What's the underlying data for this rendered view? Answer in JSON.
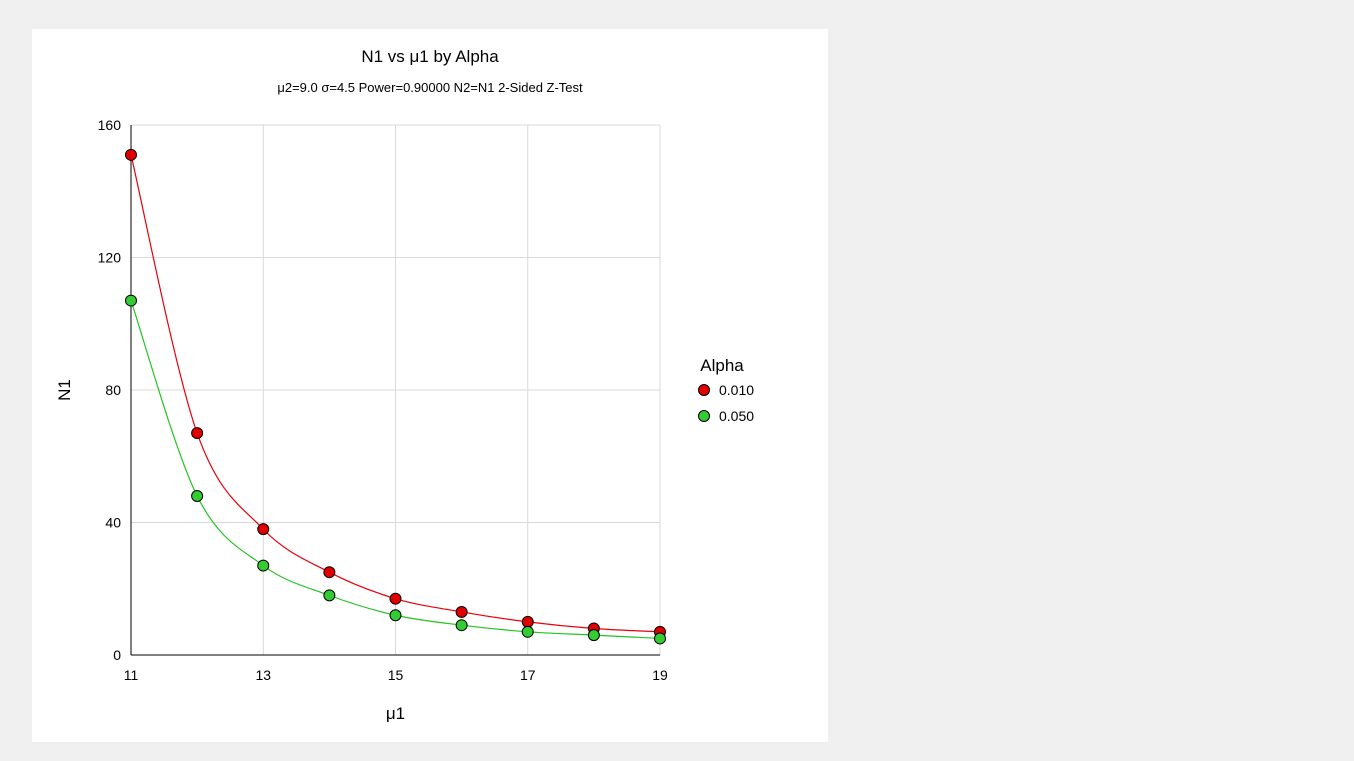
{
  "chart_data": {
    "type": "line",
    "title": "N1 vs μ1 by Alpha",
    "subtitle": "μ2=9.0 σ=4.5 Power=0.90000 N2=N1 2-Sided Z-Test",
    "xlabel": "μ1",
    "ylabel": "N1",
    "x": [
      11,
      12,
      13,
      14,
      15,
      16,
      17,
      18,
      19
    ],
    "xlim": [
      11,
      19
    ],
    "ylim": [
      0,
      160
    ],
    "xticks": [
      "11",
      "13",
      "15",
      "17",
      "19"
    ],
    "yticks": [
      "0",
      "40",
      "80",
      "120",
      "160"
    ],
    "grid": true,
    "legend_title": "Alpha",
    "legend_position": "right",
    "series": [
      {
        "name": "0.010",
        "color": "#e8000b",
        "marker_color": "#e00000",
        "values": [
          151,
          67,
          38,
          25,
          17,
          13,
          10,
          8,
          7
        ]
      },
      {
        "name": "0.050",
        "color": "#22c322",
        "marker_color": "#33cc33",
        "values": [
          107,
          48,
          27,
          18,
          12,
          9,
          7,
          6,
          5
        ]
      }
    ]
  }
}
